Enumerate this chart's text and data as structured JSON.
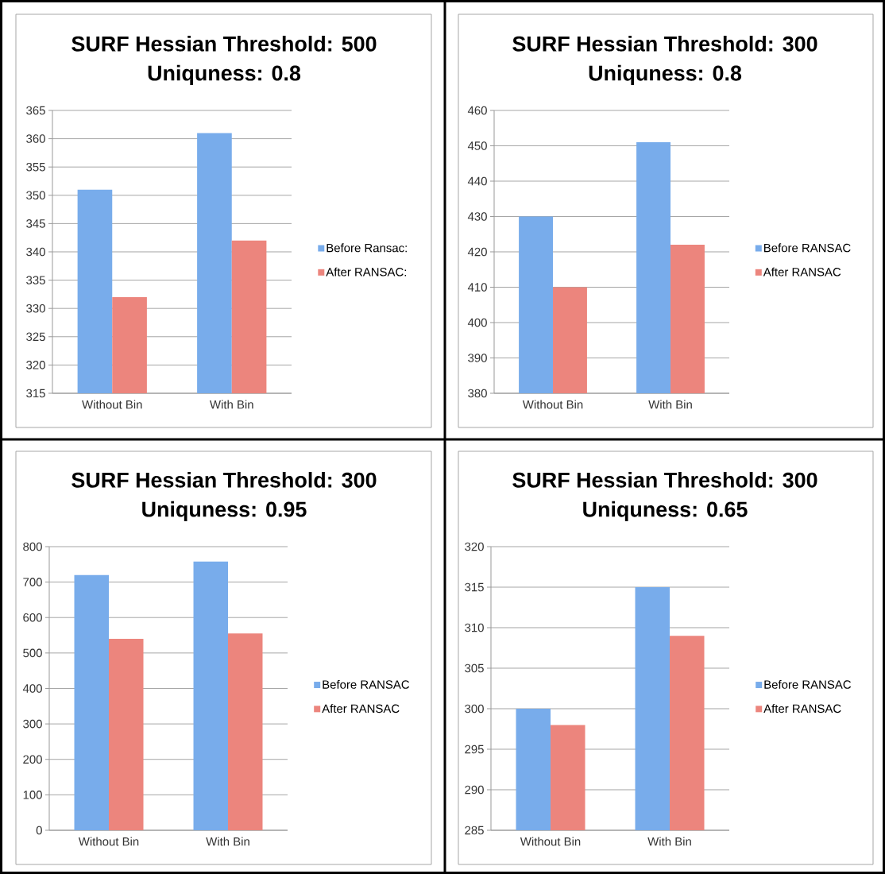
{
  "chart_data": [
    {
      "type": "bar",
      "title": "SURF Hessian Threshold: 500",
      "subtitle": "Uniquness: 0.8",
      "categories": [
        "Without Bin",
        "With Bin"
      ],
      "series": [
        {
          "name": "Before Ransac:",
          "color": "#78aceb",
          "values": [
            351,
            361
          ]
        },
        {
          "name": "After RANSAC:",
          "color": "#ec857d",
          "values": [
            332,
            342
          ]
        }
      ],
      "ylim": [
        315,
        365
      ],
      "yticks": [
        315,
        320,
        325,
        330,
        335,
        340,
        345,
        350,
        355,
        360,
        365
      ],
      "grid": "y",
      "legend": "right"
    },
    {
      "type": "bar",
      "title": "SURF Hessian Threshold: 300",
      "subtitle": "Uniquness: 0.8",
      "categories": [
        "Without Bin",
        "With Bin"
      ],
      "series": [
        {
          "name": "Before RANSAC",
          "color": "#78aceb",
          "values": [
            430,
            451
          ]
        },
        {
          "name": "After RANSAC",
          "color": "#ec857d",
          "values": [
            410,
            422
          ]
        }
      ],
      "ylim": [
        380,
        460
      ],
      "yticks": [
        380,
        390,
        400,
        410,
        420,
        430,
        440,
        450,
        460
      ],
      "grid": "y",
      "legend": "right"
    },
    {
      "type": "bar",
      "title": "SURF Hessian Threshold: 300",
      "subtitle": "Uniquness: 0.95",
      "categories": [
        "Without Bin",
        "With Bin"
      ],
      "series": [
        {
          "name": "Before RANSAC",
          "color": "#78aceb",
          "values": [
            720,
            758
          ]
        },
        {
          "name": "After RANSAC",
          "color": "#ec857d",
          "values": [
            540,
            555
          ]
        }
      ],
      "ylim": [
        0,
        800
      ],
      "yticks": [
        0,
        100,
        200,
        300,
        400,
        500,
        600,
        700,
        800
      ],
      "grid": "y",
      "legend": "right"
    },
    {
      "type": "bar",
      "title": "SURF Hessian Threshold: 300",
      "subtitle": "Uniquness: 0.65",
      "categories": [
        "Without Bin",
        "With Bin"
      ],
      "series": [
        {
          "name": "Before RANSAC",
          "color": "#78aceb",
          "values": [
            300,
            315
          ]
        },
        {
          "name": "After RANSAC",
          "color": "#ec857d",
          "values": [
            298,
            309
          ]
        }
      ],
      "ylim": [
        285,
        320
      ],
      "yticks": [
        285,
        290,
        295,
        300,
        305,
        310,
        315,
        320
      ],
      "grid": "y",
      "legend": "right"
    }
  ]
}
